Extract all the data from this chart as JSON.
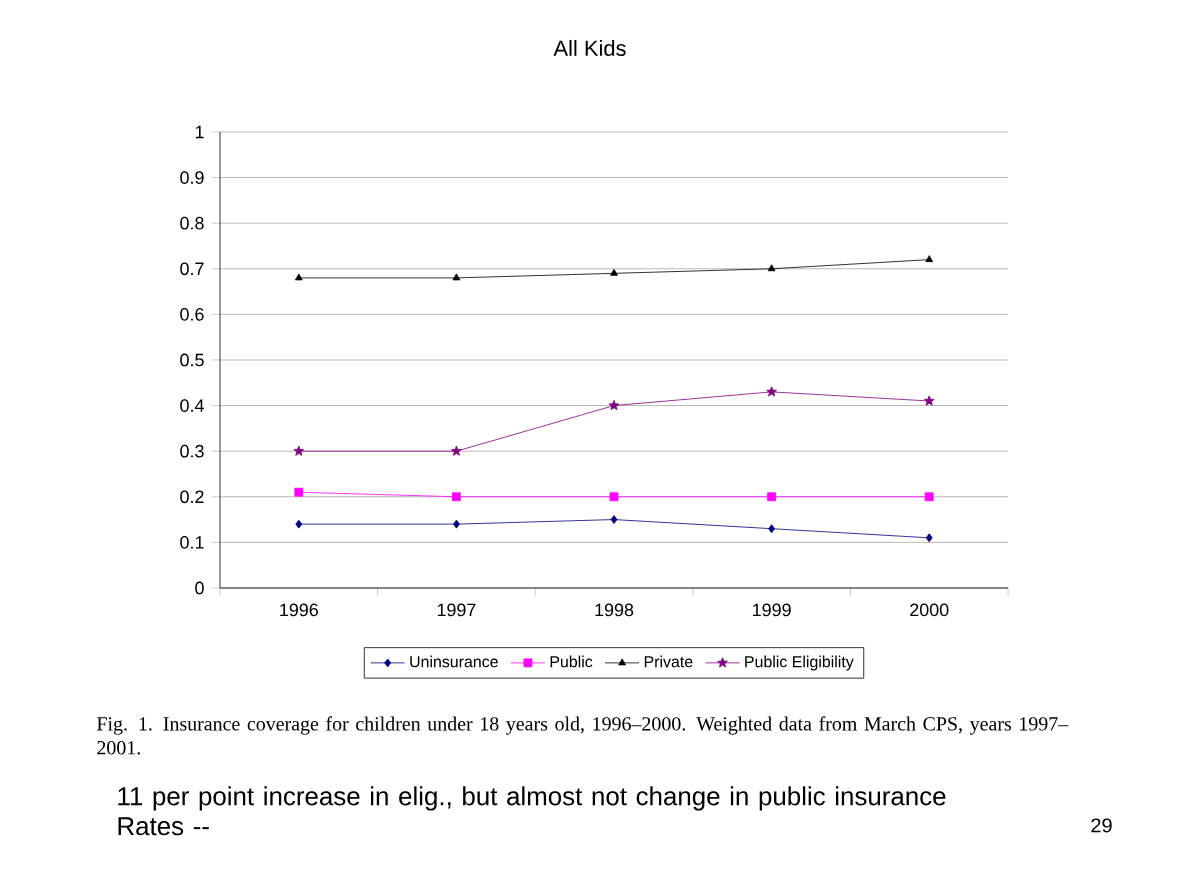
{
  "chart_data": {
    "type": "line",
    "title": "All Kids",
    "categories": [
      "1996",
      "1997",
      "1998",
      "1999",
      "2000"
    ],
    "series": [
      {
        "name": "Uninsurance",
        "color": "#000080",
        "marker": "diamond",
        "values": [
          0.14,
          0.14,
          0.15,
          0.13,
          0.11
        ]
      },
      {
        "name": "Public",
        "color": "#ff00ff",
        "marker": "square",
        "values": [
          0.21,
          0.2,
          0.2,
          0.2,
          0.2
        ]
      },
      {
        "name": "Private",
        "color": "#000000",
        "marker": "triangle",
        "values": [
          0.68,
          0.68,
          0.69,
          0.7,
          0.72
        ]
      },
      {
        "name": "Public Eligibility",
        "color": "#800080",
        "marker": "star",
        "values": [
          0.3,
          0.3,
          0.4,
          0.43,
          0.41
        ]
      }
    ],
    "ylim": [
      0,
      1
    ],
    "yticks": [
      0,
      0.1,
      0.2,
      0.3,
      0.4,
      0.5,
      0.6,
      0.7,
      0.8,
      0.9,
      1
    ],
    "grid": "y",
    "legend": "bottom",
    "annotations": [
      "Fig. 1. Insurance coverage for children under 18 years old, 1996–2000. Weighted data from March CPS, years 1997–2001.",
      "11 per point increase in elig., but almost not change in public insurance Rates --",
      "29"
    ]
  }
}
